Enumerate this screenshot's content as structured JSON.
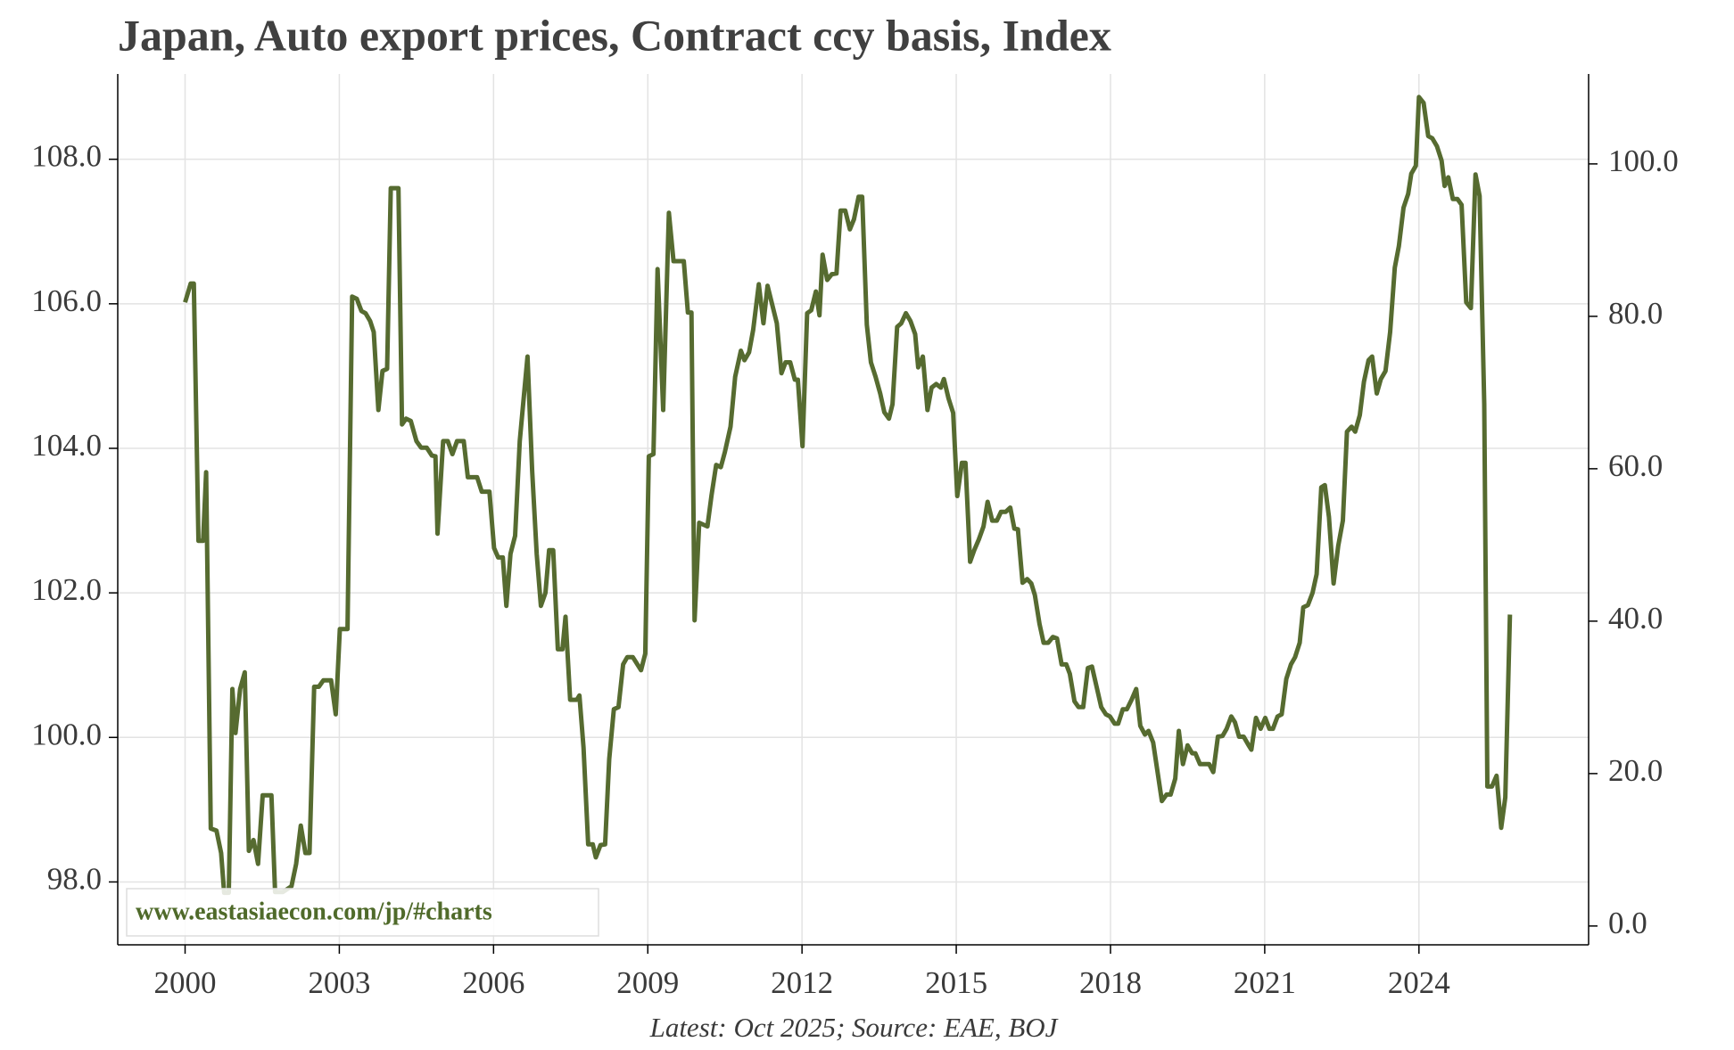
{
  "chart_data": {
    "type": "line",
    "title": "Japan, Auto export prices, Contract ccy basis, Index",
    "note": "Latest: Oct 2025; Source: EAE, BOJ",
    "watermark": "www.eastasiaecon.com/jp/#charts",
    "x": [
      2000.0,
      2000.11,
      2000.17,
      2000.26,
      2000.35,
      2000.41,
      2000.5,
      2000.61,
      2000.7,
      2000.76,
      2000.85,
      2000.92,
      2000.98,
      2001.07,
      2001.16,
      2001.24,
      2001.33,
      2001.42,
      2001.51,
      2001.68,
      2001.75,
      2001.9,
      2002.07,
      2002.16,
      2002.25,
      2002.34,
      2002.42,
      2002.51,
      2002.6,
      2002.69,
      2002.84,
      2002.93,
      2003.01,
      2003.16,
      2003.25,
      2003.34,
      2003.43,
      2003.51,
      2003.6,
      2003.67,
      2003.76,
      2003.84,
      2003.93,
      2004.0,
      2004.15,
      2004.22,
      2004.3,
      2004.39,
      2004.5,
      2004.59,
      2004.7,
      2004.8,
      2004.87,
      2004.91,
      2005.02,
      2005.11,
      2005.2,
      2005.29,
      2005.42,
      2005.5,
      2005.68,
      2005.77,
      2005.92,
      2006.01,
      2006.09,
      2006.18,
      2006.25,
      2006.33,
      2006.42,
      2006.51,
      2006.59,
      2006.66,
      2006.75,
      2006.84,
      2006.92,
      2007.01,
      2007.08,
      2007.16,
      2007.25,
      2007.34,
      2007.4,
      2007.49,
      2007.62,
      2007.67,
      2007.75,
      2007.84,
      2007.93,
      2007.99,
      2008.08,
      2008.17,
      2008.25,
      2008.34,
      2008.43,
      2008.52,
      2008.6,
      2008.71,
      2008.87,
      2008.95,
      2009.02,
      2009.11,
      2009.19,
      2009.3,
      2009.41,
      2009.5,
      2009.7,
      2009.78,
      2009.85,
      2009.91,
      2010.0,
      2010.16,
      2010.24,
      2010.33,
      2010.42,
      2010.5,
      2010.61,
      2010.7,
      2010.81,
      2010.88,
      2010.97,
      2011.05,
      2011.16,
      2011.25,
      2011.33,
      2011.42,
      2011.51,
      2011.6,
      2011.68,
      2011.77,
      2011.86,
      2011.92,
      2012.01,
      2012.1,
      2012.18,
      2012.27,
      2012.34,
      2012.4,
      2012.49,
      2012.58,
      2012.67,
      2012.75,
      2012.84,
      2012.93,
      2013.01,
      2013.1,
      2013.17,
      2013.26,
      2013.34,
      2013.43,
      2013.52,
      2013.6,
      2013.69,
      2013.76,
      2013.85,
      2013.93,
      2014.02,
      2014.11,
      2014.2,
      2014.26,
      2014.35,
      2014.44,
      2014.52,
      2014.61,
      2014.7,
      2014.76,
      2014.85,
      2014.94,
      2015.02,
      2015.11,
      2015.18,
      2015.27,
      2015.35,
      2015.44,
      2015.53,
      2015.61,
      2015.7,
      2015.79,
      2015.87,
      2015.96,
      2016.05,
      2016.13,
      2016.2,
      2016.29,
      2016.38,
      2016.46,
      2016.53,
      2016.62,
      2016.7,
      2016.79,
      2016.88,
      2016.96,
      2017.05,
      2017.14,
      2017.21,
      2017.3,
      2017.38,
      2017.47,
      2017.56,
      2017.64,
      2017.73,
      2017.82,
      2017.91,
      2017.99,
      2018.08,
      2018.15,
      2018.24,
      2018.32,
      2018.41,
      2018.5,
      2018.58,
      2018.67,
      2018.74,
      2018.83,
      2018.91,
      2019.0,
      2019.09,
      2019.17,
      2019.26,
      2019.33,
      2019.41,
      2019.5,
      2019.59,
      2019.65,
      2019.74,
      2019.83,
      2019.92,
      2020.0,
      2020.09,
      2020.18,
      2020.26,
      2020.35,
      2020.42,
      2020.5,
      2020.59,
      2020.68,
      2020.74,
      2020.83,
      2020.92,
      2021.01,
      2021.09,
      2021.16,
      2021.25,
      2021.33,
      2021.42,
      2021.51,
      2021.59,
      2021.68,
      2021.75,
      2021.84,
      2021.93,
      2022.01,
      2022.1,
      2022.17,
      2022.25,
      2022.34,
      2022.43,
      2022.52,
      2022.6,
      2022.69,
      2022.76,
      2022.85,
      2022.93,
      2023.02,
      2023.09,
      2023.18,
      2023.26,
      2023.35,
      2023.44,
      2023.53,
      2023.61,
      2023.7,
      2023.79,
      2023.85,
      2023.94,
      2024.0,
      2024.09,
      2024.18,
      2024.26,
      2024.35,
      2024.44,
      2024.5,
      2024.57,
      2024.66,
      2024.75,
      2024.83,
      2024.92,
      2025.01,
      2025.1,
      2025.18,
      2025.27,
      2025.33,
      2025.42,
      2025.51,
      2025.6,
      2025.68,
      2025.77
    ],
    "series": [
      {
        "name": "Auto export prices",
        "color": "#566b30",
        "values": [
          106.02,
          106.28,
          106.28,
          102.72,
          102.72,
          103.67,
          98.74,
          98.71,
          98.4,
          97.85,
          97.85,
          100.67,
          100.06,
          100.67,
          100.9,
          98.43,
          98.58,
          98.25,
          99.2,
          99.2,
          97.86,
          97.86,
          97.94,
          98.25,
          98.78,
          98.4,
          98.4,
          100.7,
          100.7,
          100.79,
          100.79,
          100.32,
          101.5,
          101.5,
          106.1,
          106.07,
          105.9,
          105.87,
          105.76,
          105.61,
          104.53,
          105.07,
          105.1,
          107.6,
          107.6,
          104.33,
          104.41,
          104.38,
          104.1,
          104.01,
          104.01,
          103.9,
          103.89,
          102.82,
          104.1,
          104.1,
          103.92,
          104.1,
          104.1,
          103.6,
          103.6,
          103.4,
          103.4,
          102.62,
          102.49,
          102.49,
          101.82,
          102.54,
          102.79,
          104.1,
          104.72,
          105.27,
          103.69,
          102.54,
          101.82,
          102.0,
          102.59,
          102.59,
          101.22,
          101.22,
          101.67,
          100.52,
          100.52,
          100.58,
          99.86,
          98.52,
          98.52,
          98.34,
          98.51,
          98.52,
          99.7,
          100.39,
          100.42,
          101.01,
          101.11,
          101.11,
          100.93,
          101.16,
          103.89,
          103.92,
          106.48,
          104.53,
          107.26,
          106.59,
          106.59,
          105.88,
          105.88,
          101.62,
          102.97,
          102.92,
          103.35,
          103.77,
          103.74,
          103.95,
          104.3,
          104.99,
          105.35,
          105.22,
          105.33,
          105.64,
          106.27,
          105.73,
          106.25,
          105.99,
          105.73,
          105.04,
          105.19,
          105.19,
          104.95,
          104.95,
          104.03,
          105.87,
          105.91,
          106.17,
          105.84,
          106.68,
          106.33,
          106.41,
          106.42,
          107.29,
          107.29,
          107.03,
          107.17,
          107.48,
          107.48,
          105.71,
          105.19,
          104.99,
          104.76,
          104.5,
          104.41,
          104.61,
          105.68,
          105.73,
          105.87,
          105.76,
          105.58,
          105.12,
          105.27,
          104.53,
          104.84,
          104.89,
          104.84,
          104.96,
          104.69,
          104.49,
          103.34,
          103.8,
          103.8,
          102.43,
          102.59,
          102.74,
          102.92,
          103.26,
          103.0,
          103.0,
          103.12,
          103.12,
          103.18,
          102.89,
          102.88,
          102.14,
          102.19,
          102.13,
          101.97,
          101.57,
          101.31,
          101.31,
          101.39,
          101.37,
          101.01,
          101.01,
          100.88,
          100.5,
          100.42,
          100.42,
          100.96,
          100.98,
          100.7,
          100.42,
          100.32,
          100.29,
          100.19,
          100.19,
          100.39,
          100.39,
          100.52,
          100.67,
          100.16,
          100.04,
          100.09,
          99.93,
          99.55,
          99.12,
          99.21,
          99.21,
          99.43,
          100.09,
          99.63,
          99.89,
          99.78,
          99.78,
          99.63,
          99.63,
          99.63,
          99.52,
          100.01,
          100.02,
          100.12,
          100.29,
          100.21,
          100.01,
          100.01,
          99.9,
          99.83,
          100.27,
          100.12,
          100.27,
          100.12,
          100.12,
          100.29,
          100.32,
          100.81,
          101.01,
          101.11,
          101.31,
          101.8,
          101.83,
          102.0,
          102.26,
          103.46,
          103.49,
          103.05,
          102.13,
          102.65,
          103.0,
          104.23,
          104.3,
          104.23,
          104.46,
          104.92,
          105.22,
          105.27,
          104.76,
          104.96,
          105.07,
          105.61,
          106.5,
          106.8,
          107.33,
          107.52,
          107.8,
          107.91,
          108.86,
          108.78,
          108.32,
          108.29,
          108.18,
          107.98,
          107.63,
          107.75,
          107.45,
          107.45,
          107.37,
          106.02,
          105.94,
          107.79,
          107.49,
          104.61,
          99.32,
          99.32,
          99.47,
          98.75,
          99.17,
          101.7
        ]
      }
    ],
    "xlim": [
      1998.69,
      2027.3
    ],
    "xticks": [
      2000,
      2003,
      2006,
      2009,
      2012,
      2015,
      2018,
      2021,
      2024
    ],
    "ylim": [
      97.13,
      109.18
    ],
    "yticks": [
      {
        "value": 98,
        "label": "98.0"
      },
      {
        "value": 100,
        "label": "100.0"
      },
      {
        "value": 102,
        "label": "102.0"
      },
      {
        "value": 104,
        "label": "104.0"
      },
      {
        "value": 106,
        "label": "106.0"
      },
      {
        "value": 108,
        "label": "108.0"
      }
    ],
    "y2lim": [
      -2.47,
      111.8
    ],
    "y2ticks": [
      {
        "value": 0,
        "label": "0.0"
      },
      {
        "value": 20,
        "label": "20.0"
      },
      {
        "value": 40,
        "label": "40.0"
      },
      {
        "value": 60,
        "label": "60.0"
      },
      {
        "value": 80,
        "label": "80.0"
      },
      {
        "value": 100,
        "label": "100.0"
      }
    ],
    "grid": true
  }
}
